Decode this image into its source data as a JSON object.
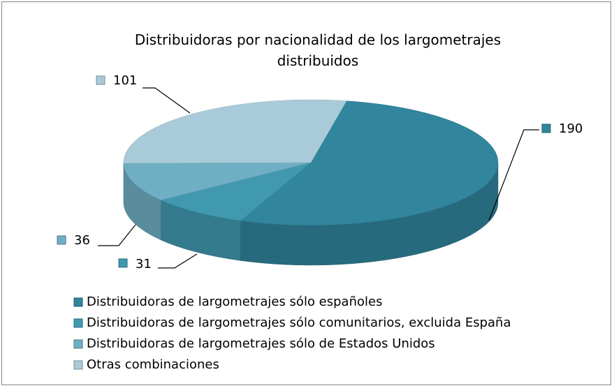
{
  "chart_data": {
    "type": "pie3d",
    "title": "Distribuidoras por nacionalidad de los largometrajes distribuidos",
    "categories": [
      "Distribuidoras de largometrajes sólo españoles",
      "Distribuidoras de largometrajes sólo comunitarios, excluida España",
      "Distribuidoras de largometrajes sólo de Estados Unidos",
      "Otras combinaciones"
    ],
    "values": [
      190,
      31,
      36,
      101
    ],
    "colors": [
      "#31859c",
      "#4199b0",
      "#6fafc4",
      "#a9cbd9"
    ],
    "legend": "bottom"
  }
}
